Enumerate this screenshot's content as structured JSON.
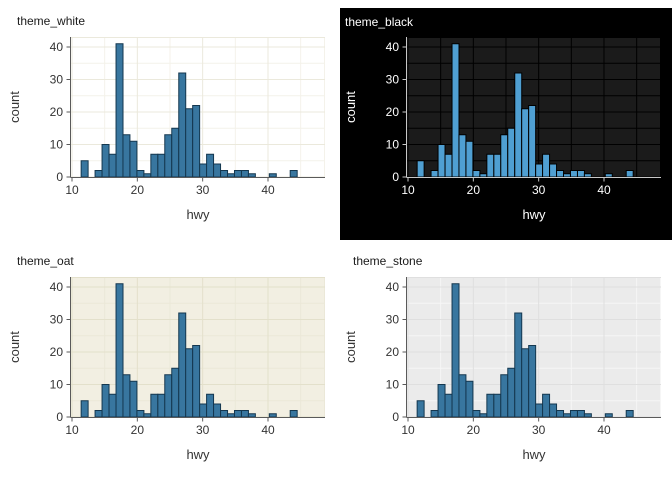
{
  "figure": {
    "description": "2x2 grid of identical histograms of hwy rendered in four ggplot themes"
  },
  "chart_data": {
    "type": "bar",
    "subtype": "histogram",
    "xlabel": "hwy",
    "ylabel": "count",
    "x_ticks_major": [
      10,
      20,
      30,
      40
    ],
    "x_ticks_minor": [
      15,
      25,
      35,
      45
    ],
    "y_ticks_major": [
      0,
      10,
      20,
      30,
      40
    ],
    "y_ticks_minor": [
      5,
      15,
      25,
      35
    ],
    "xlim": [
      9.8,
      48.7
    ],
    "ylim": [
      0,
      43
    ],
    "grid": "on",
    "legend": "none",
    "binwidth": 1.067,
    "bins": [
      {
        "x": 11.4,
        "n": 5
      },
      {
        "x": 13.53,
        "n": 2
      },
      {
        "x": 14.6,
        "n": 10
      },
      {
        "x": 15.67,
        "n": 7
      },
      {
        "x": 16.74,
        "n": 41
      },
      {
        "x": 17.8,
        "n": 13
      },
      {
        "x": 18.87,
        "n": 11
      },
      {
        "x": 19.94,
        "n": 2
      },
      {
        "x": 21.0,
        "n": 1
      },
      {
        "x": 22.07,
        "n": 7
      },
      {
        "x": 23.14,
        "n": 7
      },
      {
        "x": 24.2,
        "n": 13
      },
      {
        "x": 25.27,
        "n": 15
      },
      {
        "x": 26.34,
        "n": 32
      },
      {
        "x": 27.4,
        "n": 21
      },
      {
        "x": 28.47,
        "n": 22
      },
      {
        "x": 29.54,
        "n": 4
      },
      {
        "x": 30.6,
        "n": 7
      },
      {
        "x": 31.67,
        "n": 4
      },
      {
        "x": 32.74,
        "n": 2
      },
      {
        "x": 33.8,
        "n": 1
      },
      {
        "x": 34.87,
        "n": 2
      },
      {
        "x": 35.94,
        "n": 2
      },
      {
        "x": 37.0,
        "n": 1
      },
      {
        "x": 40.2,
        "n": 1
      },
      {
        "x": 43.4,
        "n": 2
      }
    ]
  },
  "panels": [
    {
      "title": "theme_white",
      "inset_bg": false,
      "colors": {
        "outer": "#ffffff",
        "panel": "#ffffff",
        "grid_major": "#EBE9DC",
        "grid_minor": "#F4F2EA",
        "axis": "#5A5A5A",
        "text": "#333333",
        "title": "#1a1a1a",
        "bar_fill": "#38769F",
        "bar_stroke": "#14374F"
      }
    },
    {
      "title": "theme_black",
      "inset_bg": true,
      "colors": {
        "outer": "#000000",
        "panel": "#1B1B1B",
        "grid_major": "#000000",
        "grid_minor": "#000000",
        "axis": "#C8C8C8",
        "text": "#FFFFFF",
        "title": "#FFFFFF",
        "bar_fill": "#4F9FD2",
        "bar_stroke": "#000000"
      }
    },
    {
      "title": "theme_oat",
      "inset_bg": false,
      "colors": {
        "outer": "#ffffff",
        "panel": "#F2EFE2",
        "grid_major": "#E3E0CB",
        "grid_minor": "#EBE8D8",
        "axis": "#5A5A5A",
        "text": "#333333",
        "title": "#1a1a1a",
        "bar_fill": "#38769F",
        "bar_stroke": "#14374F"
      }
    },
    {
      "title": "theme_stone",
      "inset_bg": false,
      "colors": {
        "outer": "#ffffff",
        "panel": "#EBEBEB",
        "grid_major": "#DFDFDF",
        "grid_minor": "#F6F6F6",
        "axis": "#5A5A5A",
        "text": "#333333",
        "title": "#1a1a1a",
        "bar_fill": "#38769F",
        "bar_stroke": "#14374F"
      }
    }
  ]
}
